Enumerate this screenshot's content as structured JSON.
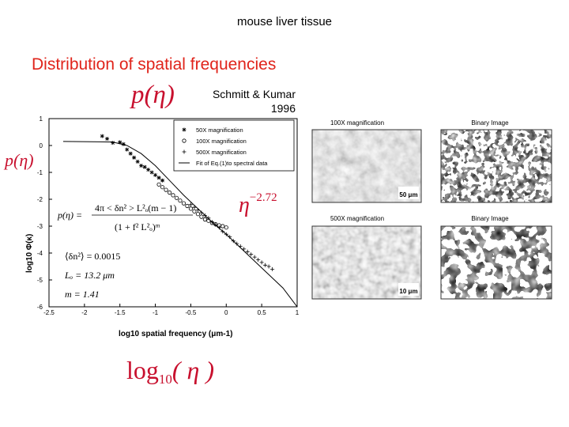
{
  "slide": {
    "caption": "mouse liver tissue",
    "heading": "Distribution of spatial frequencies",
    "p_eta_label": "p(η)",
    "attribution_line1": "Schmitt & Kumar",
    "attribution_line2": "1996",
    "exponent_base": "η",
    "exponent_power": "−2.72",
    "xaxis_label_log": "log",
    "xaxis_label_sub": "10",
    "xaxis_label_arg": "( η )"
  },
  "chart_data": {
    "type": "scatter",
    "xlabel": "log10 spatial frequency (μm-1)",
    "ylabel": "log10 Φ(κ)",
    "xlim": [
      -2.5,
      1
    ],
    "ylim": [
      -6,
      1
    ],
    "xticks": [
      -2.5,
      -2,
      -1.5,
      -1,
      -0.5,
      0,
      0.5,
      1
    ],
    "xtick_labels": [
      "-2.5",
      "-2",
      "-1.5",
      "-1",
      "-0.5",
      "0",
      "0.5",
      "1"
    ],
    "yticks": [
      1,
      0,
      -1,
      -2,
      -3,
      -4,
      -5,
      -6
    ],
    "ytick_labels": [
      "1",
      "0",
      "-1",
      "-2",
      "-3",
      "-4",
      "-5",
      "-6"
    ],
    "legend_position": "top-right",
    "legend": [
      {
        "marker": "asterisk",
        "label": "50X magnification"
      },
      {
        "marker": "circle",
        "label": "100X magnification"
      },
      {
        "marker": "plus",
        "label": "500X magnification"
      },
      {
        "marker": "line",
        "label": "Fit of Eq.(1)to spectral data"
      }
    ],
    "series": [
      {
        "name": "50X magnification",
        "marker": "asterisk",
        "x": [
          -1.75,
          -1.68,
          -1.6,
          -1.5,
          -1.45,
          -1.4,
          -1.35,
          -1.3,
          -1.25,
          -1.2,
          -1.15,
          -1.1,
          -1.05,
          -1.0,
          -0.95,
          -0.9
        ],
        "y": [
          0.35,
          0.25,
          0.1,
          0.12,
          0.05,
          -0.15,
          -0.3,
          -0.45,
          -0.6,
          -0.75,
          -0.8,
          -0.9,
          -1.0,
          -1.1,
          -1.2,
          -1.3
        ]
      },
      {
        "name": "100X magnification",
        "marker": "circle",
        "x": [
          -0.95,
          -0.9,
          -0.85,
          -0.8,
          -0.75,
          -0.7,
          -0.65,
          -0.6,
          -0.55,
          -0.5,
          -0.45,
          -0.4,
          -0.35,
          -0.3,
          -0.25,
          -0.2,
          -0.15,
          -0.1,
          -0.05,
          0.0
        ],
        "y": [
          -1.45,
          -1.55,
          -1.65,
          -1.75,
          -1.85,
          -1.95,
          -2.05,
          -2.15,
          -2.25,
          -2.35,
          -2.45,
          -2.55,
          -2.65,
          -2.75,
          -2.8,
          -2.88,
          -2.93,
          -2.97,
          -3.0,
          -3.05
        ]
      },
      {
        "name": "500X magnification",
        "marker": "plus",
        "x": [
          -0.5,
          -0.45,
          -0.4,
          -0.35,
          -0.3,
          -0.25,
          -0.2,
          -0.15,
          -0.1,
          -0.05,
          0.0,
          0.05,
          0.1,
          0.15,
          0.2,
          0.25,
          0.3,
          0.35,
          0.4,
          0.45,
          0.5,
          0.55,
          0.6,
          0.65
        ],
        "y": [
          -2.2,
          -2.3,
          -2.4,
          -2.5,
          -2.6,
          -2.7,
          -2.85,
          -2.95,
          -3.05,
          -3.2,
          -3.3,
          -3.4,
          -3.55,
          -3.65,
          -3.75,
          -3.85,
          -3.95,
          -4.05,
          -4.15,
          -4.25,
          -4.35,
          -4.45,
          -4.5,
          -4.6
        ]
      },
      {
        "name": "Fit of Eq.(1)to spectral data",
        "marker": "line",
        "x": [
          -2.3,
          -1.6,
          -1.4,
          -1.2,
          -1.0,
          -0.8,
          -0.6,
          -0.4,
          -0.2,
          0.0,
          0.2,
          0.4,
          0.6,
          0.8,
          1.0
        ],
        "y": [
          0.15,
          0.13,
          0.0,
          -0.3,
          -0.75,
          -1.3,
          -1.85,
          -2.35,
          -2.85,
          -3.3,
          -3.8,
          -4.3,
          -4.8,
          -5.3,
          -6.0
        ]
      }
    ],
    "annotations": {
      "equation_lhs": "p(η) =",
      "equation_numerator": "4π < δn² > L²ₒ(m − 1)",
      "equation_denominator": "(1 + f² L²ₒ)ᵐ",
      "param_dn2": "⟨δn²⟩ = 0.0015",
      "param_Lo": "Lₒ = 13.2 μm",
      "param_m": "m = 1.41"
    }
  },
  "images": [
    {
      "title": "100X magnification",
      "scalebar": "50 μm",
      "binary": false
    },
    {
      "title": "Binary Image",
      "scalebar": "",
      "binary": true
    },
    {
      "title": "500X magnification",
      "scalebar": "10 μm",
      "binary": false
    },
    {
      "title": "Binary Image",
      "scalebar": "",
      "binary": true
    }
  ]
}
